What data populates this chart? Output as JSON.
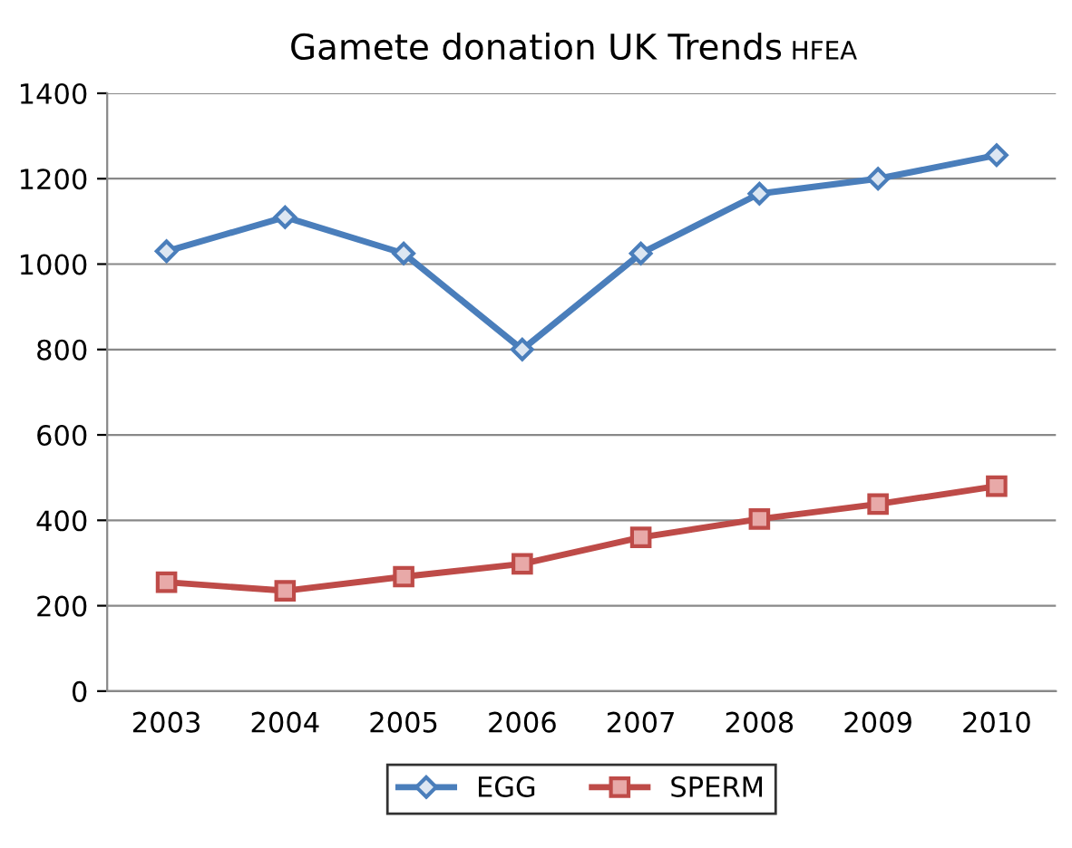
{
  "chart_data": {
    "type": "line",
    "title": "Gamete donation UK Trends",
    "subtitle": "HFEA",
    "categories": [
      "2003",
      "2004",
      "2005",
      "2006",
      "2007",
      "2008",
      "2009",
      "2010"
    ],
    "series": [
      {
        "name": "EGG",
        "color": "#4a7ebb",
        "marker": "diamond",
        "values": [
          1030,
          1110,
          1025,
          800,
          1025,
          1165,
          1200,
          1255
        ]
      },
      {
        "name": "SPERM",
        "color": "#be4b48",
        "marker": "square",
        "values": [
          255,
          235,
          268,
          298,
          360,
          403,
          438,
          480
        ]
      }
    ],
    "ylim": [
      0,
      1400
    ],
    "yticks": [
      0,
      200,
      400,
      600,
      800,
      1000,
      1200,
      1400
    ],
    "grid": "y",
    "legend": "bottom",
    "line_style": "solid"
  }
}
